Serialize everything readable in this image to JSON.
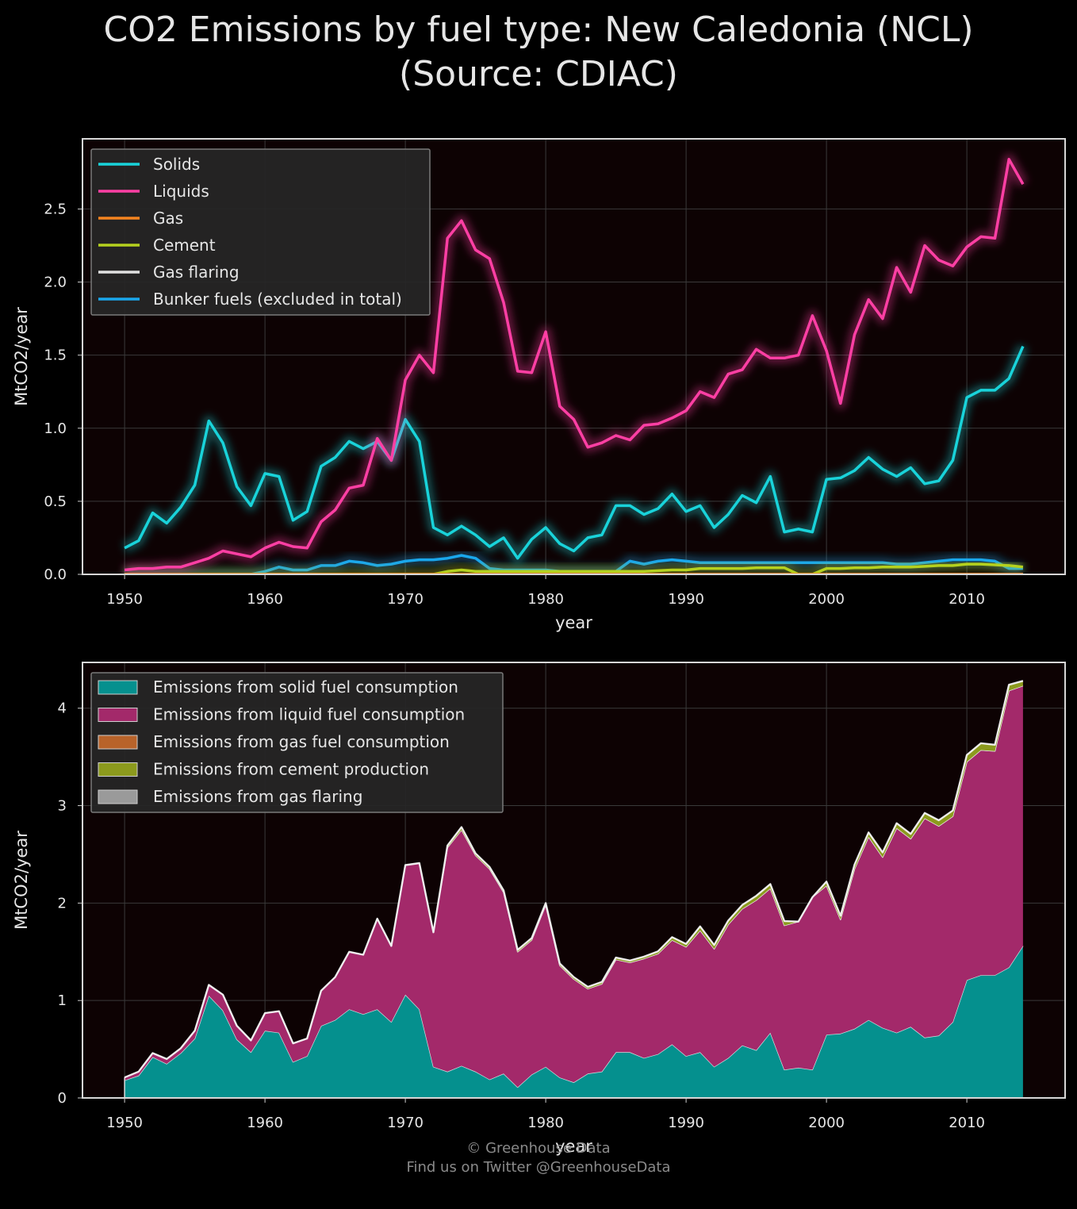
{
  "title": {
    "line1": "CO2 Emissions by fuel type: New Caledonia (NCL)",
    "line2": "(Source: CDIAC)"
  },
  "footer": {
    "line1": "© Greenhouse Data",
    "line2": "Find us on Twitter @GreenhouseData"
  },
  "colors": {
    "solids": "#19d3da",
    "liquids": "#ff3fa4",
    "gas": "#f5841f",
    "cement": "#b5d11e",
    "flaring": "#e0e0e0",
    "bunker": "#1aa7ec",
    "area_solid": "#05908e",
    "area_liquid": "#a3296a",
    "area_gas": "#b8632a",
    "area_cement": "#8c9a1d",
    "area_flaring": "#9a9a9a"
  },
  "chart_data": [
    {
      "type": "line",
      "xlabel": "year",
      "ylabel": "MtCO2/year",
      "xlim": [
        1947,
        2017
      ],
      "ylim": [
        0,
        2.98
      ],
      "xticks": [
        "1950",
        "1960",
        "1970",
        "1980",
        "1990",
        "2000",
        "2010"
      ],
      "yticks": [
        "0.0",
        "0.5",
        "1.0",
        "1.5",
        "2.0",
        "2.5"
      ],
      "grid": true,
      "legend_position": "top-left",
      "x": [
        1950,
        1951,
        1952,
        1953,
        1954,
        1955,
        1956,
        1957,
        1958,
        1959,
        1960,
        1961,
        1962,
        1963,
        1964,
        1965,
        1966,
        1967,
        1968,
        1969,
        1970,
        1971,
        1972,
        1973,
        1974,
        1975,
        1976,
        1977,
        1978,
        1979,
        1980,
        1981,
        1982,
        1983,
        1984,
        1985,
        1986,
        1987,
        1988,
        1989,
        1990,
        1991,
        1992,
        1993,
        1994,
        1995,
        1996,
        1997,
        1998,
        1999,
        2000,
        2001,
        2002,
        2003,
        2004,
        2005,
        2006,
        2007,
        2008,
        2009,
        2010,
        2011,
        2012,
        2013,
        2014
      ],
      "series": [
        {
          "name": "Solids",
          "color_key": "solids",
          "values": [
            0.18,
            0.23,
            0.42,
            0.35,
            0.46,
            0.61,
            1.05,
            0.9,
            0.6,
            0.47,
            0.69,
            0.67,
            0.37,
            0.43,
            0.74,
            0.8,
            0.91,
            0.86,
            0.91,
            0.78,
            1.06,
            0.91,
            0.32,
            0.27,
            0.33,
            0.27,
            0.19,
            0.25,
            0.11,
            0.24,
            0.32,
            0.21,
            0.16,
            0.25,
            0.27,
            0.47,
            0.47,
            0.41,
            0.45,
            0.55,
            0.43,
            0.47,
            0.32,
            0.41,
            0.54,
            0.49,
            0.67,
            0.29,
            0.31,
            0.29,
            0.65,
            0.66,
            0.71,
            0.8,
            0.72,
            0.67,
            0.73,
            0.62,
            0.64,
            0.78,
            1.21,
            1.26,
            1.26,
            1.34,
            1.56
          ]
        },
        {
          "name": "Liquids",
          "color_key": "liquids",
          "values": [
            0.03,
            0.04,
            0.04,
            0.05,
            0.05,
            0.08,
            0.11,
            0.16,
            0.14,
            0.12,
            0.18,
            0.22,
            0.19,
            0.18,
            0.36,
            0.44,
            0.59,
            0.61,
            0.93,
            0.78,
            1.33,
            1.5,
            1.38,
            2.3,
            2.42,
            2.22,
            2.16,
            1.86,
            1.39,
            1.38,
            1.66,
            1.15,
            1.06,
            0.87,
            0.9,
            0.95,
            0.92,
            1.02,
            1.03,
            1.07,
            1.12,
            1.25,
            1.21,
            1.37,
            1.4,
            1.54,
            1.48,
            1.48,
            1.5,
            1.77,
            1.53,
            1.17,
            1.64,
            1.88,
            1.75,
            2.1,
            1.93,
            2.25,
            2.15,
            2.11,
            2.24,
            2.31,
            2.3,
            2.84,
            2.67
          ]
        },
        {
          "name": "Gas",
          "color_key": "gas",
          "values": [
            0,
            0,
            0,
            0,
            0,
            0,
            0,
            0,
            0,
            0,
            0,
            0,
            0,
            0,
            0,
            0,
            0,
            0,
            0,
            0,
            0,
            0,
            0,
            0,
            0,
            0,
            0,
            0,
            0,
            0,
            0,
            0,
            0,
            0,
            0,
            0,
            0,
            0,
            0,
            0,
            0,
            0,
            0,
            0,
            0,
            0,
            0,
            0,
            0,
            0,
            0,
            0,
            0,
            0,
            0,
            0,
            0,
            0,
            0,
            0,
            0,
            0,
            0,
            0,
            0
          ]
        },
        {
          "name": "Cement",
          "color_key": "cement",
          "values": [
            0,
            0,
            0,
            0,
            0,
            0,
            0,
            0,
            0,
            0,
            0,
            0,
            0,
            0,
            0,
            0,
            0,
            0,
            0,
            0,
            0,
            0,
            0,
            0.02,
            0.03,
            0.02,
            0.02,
            0.02,
            0.02,
            0.02,
            0.02,
            0.02,
            0.02,
            0.02,
            0.02,
            0.02,
            0.02,
            0.02,
            0.025,
            0.03,
            0.03,
            0.04,
            0.04,
            0.04,
            0.04,
            0.045,
            0.045,
            0.045,
            0,
            0,
            0.04,
            0.04,
            0.045,
            0.045,
            0.05,
            0.05,
            0.05,
            0.055,
            0.06,
            0.06,
            0.07,
            0.07,
            0.065,
            0.06,
            0.05
          ]
        },
        {
          "name": "Gas flaring",
          "color_key": "flaring",
          "values": [
            0,
            0,
            0,
            0,
            0,
            0,
            0,
            0,
            0,
            0,
            0,
            0,
            0,
            0,
            0,
            0,
            0,
            0,
            0,
            0,
            0,
            0,
            0,
            0,
            0,
            0,
            0,
            0,
            0,
            0,
            0,
            0,
            0,
            0,
            0,
            0,
            0,
            0,
            0,
            0,
            0,
            0,
            0,
            0,
            0,
            0,
            0,
            0,
            0,
            0,
            0,
            0,
            0,
            0,
            0,
            0,
            0,
            0,
            0,
            0,
            0,
            0,
            0,
            0,
            0
          ]
        },
        {
          "name": "Bunker fuels (excluded in total)",
          "color_key": "bunker",
          "values": [
            0,
            0,
            0,
            0,
            0,
            0,
            0,
            0,
            0,
            0,
            0.02,
            0.05,
            0.03,
            0.03,
            0.06,
            0.06,
            0.09,
            0.08,
            0.06,
            0.07,
            0.09,
            0.1,
            0.1,
            0.11,
            0.13,
            0.11,
            0.04,
            0.03,
            0.03,
            0.03,
            0.03,
            0.02,
            0.02,
            0.02,
            0.02,
            0.02,
            0.09,
            0.07,
            0.09,
            0.1,
            0.09,
            0.08,
            0.08,
            0.08,
            0.08,
            0.08,
            0.08,
            0.08,
            0.08,
            0.08,
            0.08,
            0.08,
            0.08,
            0.08,
            0.08,
            0.07,
            0.07,
            0.08,
            0.09,
            0.1,
            0.1,
            0.1,
            0.09,
            0.04,
            0.04
          ]
        }
      ]
    },
    {
      "type": "area",
      "stacked": true,
      "xlabel": "year",
      "ylabel": "MtCO2/year",
      "xlim": [
        1947,
        2017
      ],
      "ylim": [
        0,
        4.47
      ],
      "xticks": [
        "1950",
        "1960",
        "1970",
        "1980",
        "1990",
        "2000",
        "2010"
      ],
      "yticks": [
        "0",
        "1",
        "2",
        "3",
        "4"
      ],
      "grid": true,
      "legend_position": "top-left",
      "x_from": 0,
      "series": [
        {
          "name": "Emissions from solid fuel consumption",
          "color_key": "area_solid",
          "source_series": 0
        },
        {
          "name": "Emissions from liquid fuel consumption",
          "color_key": "area_liquid",
          "source_series": 1
        },
        {
          "name": "Emissions from gas fuel consumption",
          "color_key": "area_gas",
          "source_series": 2
        },
        {
          "name": "Emissions from cement production",
          "color_key": "area_cement",
          "source_series": 3
        },
        {
          "name": "Emissions from gas flaring",
          "color_key": "area_flaring",
          "source_series": 4
        }
      ]
    }
  ]
}
